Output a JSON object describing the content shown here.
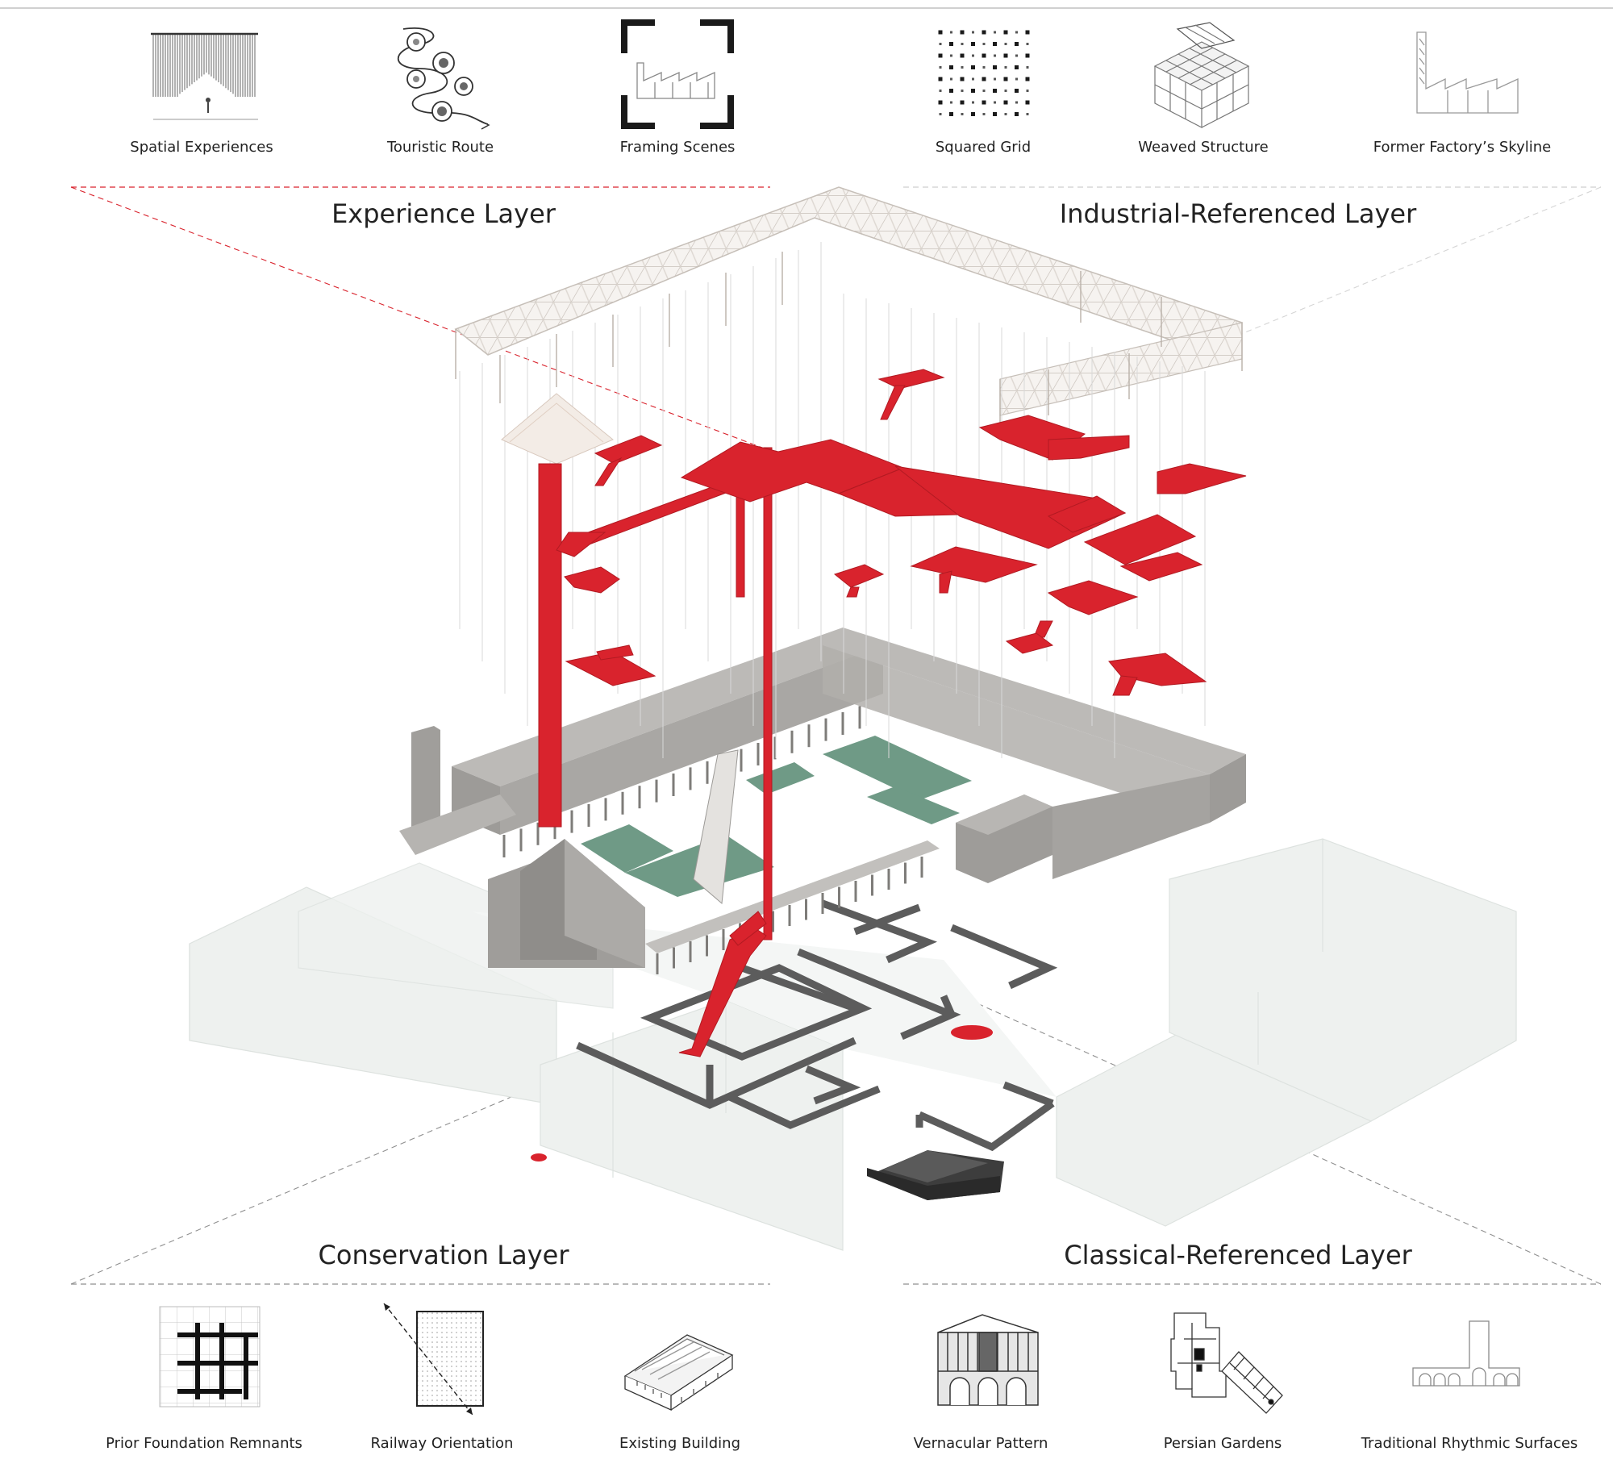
{
  "layers": {
    "experience": "Experience Layer",
    "industrial": "Industrial-Referenced Layer",
    "conservation": "Conservation Layer",
    "classical": "Classical-Referenced Layer"
  },
  "top_icons": {
    "spatial": "Spatial Experiences",
    "route": "Touristic Route",
    "framing": "Framing Scenes",
    "grid": "Squared Grid",
    "weaved": "Weaved Structure",
    "skyline": "Former Factory’s Skyline"
  },
  "bottom_icons": {
    "foundation": "Prior Foundation Remnants",
    "railway": "Railway Orientation",
    "existing": "Existing Building",
    "vernacular": "Vernacular Pattern",
    "persian": "Persian Gardens",
    "rhythmic": "Traditional Rhythmic Surfaces"
  },
  "colors": {
    "accent_red": "#d9232d",
    "building_grey": "#a7a5a2",
    "courtyard_green": "#6f9a86",
    "ghost_block": "#eef1ef",
    "roof_structure": "#cfc9c3"
  }
}
